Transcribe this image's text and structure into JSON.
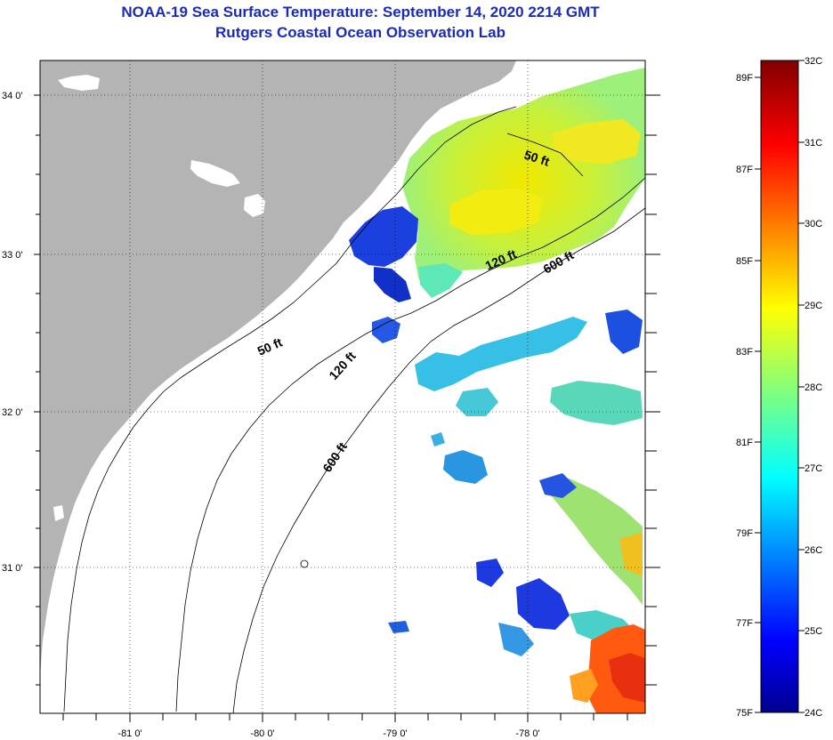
{
  "title": {
    "line1": "NOAA-19 Sea Surface Temperature:  September 14, 2020 2214 GMT",
    "line2": "Rutgers Coastal Ocean Observation Lab"
  },
  "map": {
    "lat_labels": [
      "34 0'",
      "33 0'",
      "32 0'",
      "31 0'"
    ],
    "lon_labels": [
      "-81 0'",
      "-80 0'",
      "-79 0'",
      "-78 0'"
    ],
    "depth_labels": [
      "50 ft",
      "120 ft",
      "600 ft",
      "50 ft",
      "120 ft",
      "600 ft"
    ],
    "colors": {
      "land": "#b4b4b4",
      "no_data": "#ffffff"
    }
  },
  "colorbar": {
    "fahrenheit": [
      "89F",
      "87F",
      "85F",
      "83F",
      "81F",
      "79F",
      "77F",
      "75F"
    ],
    "celsius": [
      "32C",
      "31C",
      "30C",
      "29C",
      "28C",
      "27C",
      "26C",
      "25C",
      "24C"
    ]
  }
}
